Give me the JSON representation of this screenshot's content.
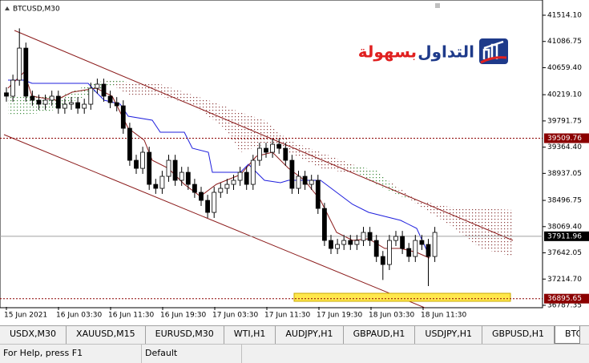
{
  "chart_data": {
    "type": "candlestick",
    "title": "BTCUSD,M30",
    "ylim": [
      36761,
      41710
    ],
    "yticks": [
      {
        "value": 41514.1,
        "label": "41514.10"
      },
      41086.75,
      {
        "value": 40659.4,
        "label": "40659.40"
      },
      {
        "value": 40219.1,
        "label": "40219.10"
      },
      39791.75,
      {
        "value": 39364.4,
        "label": "39364.40"
      },
      38937.05,
      38496.75,
      {
        "value": 38069.4,
        "label": "38069.40"
      },
      37642.05,
      {
        "value": 37214.7,
        "label": "37214.70"
      },
      36787.35
    ],
    "x_labels": [
      "15 Jun 2021",
      "16 Jun 03:30",
      "16 Jun 11:30",
      "16 Jun 19:30",
      "17 Jun 03:30",
      "17 Jun 11:30",
      "17 Jun 19:30",
      "18 Jun 03:30",
      "18 Jun 11:30"
    ],
    "levels": [
      39509.76,
      37911.96,
      36895.65
    ],
    "level_colors": [
      "#8b0000",
      "#000000",
      "#8b0000"
    ],
    "open": [
      40250,
      40195,
      40456,
      40978,
      40195,
      40130,
      40064,
      40130,
      40195,
      39999,
      40064,
      40090,
      39999,
      40064,
      40325,
      40391,
      40195,
      40090,
      40038,
      39672,
      39150,
      39019,
      39281,
      38758,
      38693,
      38889,
      39150,
      38824,
      38954,
      38758,
      38628,
      38497,
      38301,
      38628,
      38693,
      38758,
      38824,
      38954,
      38758,
      39150,
      39346,
      39281,
      39411,
      39346,
      39150,
      38693,
      38889,
      38758,
      38824,
      38366,
      37844,
      37713,
      37779,
      37844,
      37779,
      37844,
      37975,
      37844,
      37583,
      37452,
      37844,
      37910,
      37713,
      37583,
      37844,
      37779,
      37583
    ],
    "high": [
      40340,
      40546,
      41300,
      41068,
      40285,
      40220,
      40220,
      40285,
      40285,
      40154,
      40180,
      40180,
      40154,
      40415,
      40481,
      40481,
      40285,
      40180,
      40128,
      39762,
      39240,
      39371,
      39371,
      38848,
      38979,
      39240,
      39240,
      39044,
      39044,
      38848,
      38718,
      38587,
      38718,
      38783,
      38848,
      38914,
      39044,
      39044,
      39240,
      39436,
      39436,
      39501,
      39501,
      39436,
      39240,
      38979,
      38979,
      38914,
      38914,
      38456,
      37934,
      37869,
      37934,
      37934,
      37934,
      38065,
      38065,
      37934,
      37673,
      37934,
      38000,
      38000,
      37803,
      37934,
      37934,
      37869,
      38065
    ],
    "low": [
      40105,
      40105,
      40366,
      40105,
      40040,
      39974,
      39974,
      40040,
      39909,
      39909,
      39974,
      39909,
      39909,
      39974,
      40235,
      40105,
      40000,
      39948,
      39582,
      39060,
      38929,
      38929,
      38668,
      38603,
      38603,
      38799,
      38734,
      38734,
      38668,
      38538,
      38407,
      38211,
      38211,
      38538,
      38603,
      38668,
      38734,
      38668,
      38668,
      39060,
      39191,
      39191,
      39256,
      39060,
      38603,
      38603,
      38668,
      38668,
      38276,
      37754,
      37623,
      37623,
      37689,
      37689,
      37689,
      37754,
      37754,
      37493,
      37200,
      37362,
      37754,
      37623,
      37493,
      37493,
      37689,
      37100,
      37493
    ],
    "close": [
      40195,
      40456,
      40978,
      40195,
      40130,
      40064,
      40130,
      40195,
      39999,
      40064,
      40090,
      39999,
      40064,
      40325,
      40391,
      40195,
      40090,
      40038,
      39672,
      39150,
      39019,
      39281,
      38758,
      38693,
      38889,
      39150,
      38824,
      38954,
      38758,
      38628,
      38497,
      38301,
      38628,
      38693,
      38758,
      38824,
      38954,
      38758,
      39150,
      39346,
      39281,
      39411,
      39346,
      39150,
      38693,
      38889,
      38758,
      38824,
      38366,
      37844,
      37713,
      37779,
      37844,
      37779,
      37844,
      37975,
      37844,
      37583,
      37452,
      37844,
      37910,
      37713,
      37583,
      37844,
      37779,
      37583,
      37975
    ]
  },
  "logo": {
    "word1": "التداول",
    "word2": "بسهولة"
  },
  "tabs": [
    "USDX,M30",
    "XAUUSD,M15",
    "EURUSD,M30",
    "WTI,H1",
    "AUDJPY,H1",
    "GBPAUD,H1",
    "USDJPY,H1",
    "GBPUSD,H1",
    "BTC"
  ],
  "status": {
    "help": "For Help, press F1",
    "profile": "Default"
  }
}
